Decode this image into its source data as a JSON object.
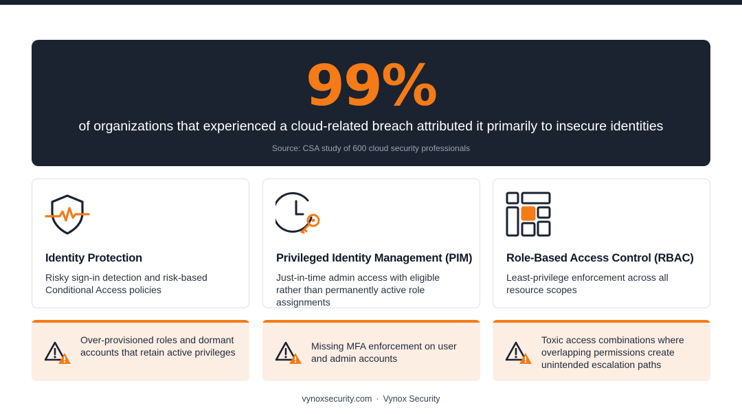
{
  "hero": {
    "stat": "99%",
    "headline": "of organizations that experienced a cloud-related breach attributed it primarily to insecure identities",
    "source": "Source: CSA study of 600 cloud security professionals"
  },
  "cards": [
    {
      "icon": "shield-pulse-icon",
      "title": "Identity Protection",
      "description": "Risky sign-in detection and risk-based Conditional Access policies"
    },
    {
      "icon": "clock-key-icon",
      "title": "Privileged Identity Management (PIM)",
      "description": "Just-in-time admin access with eligible rather than permanently active role assignments"
    },
    {
      "icon": "grid-layout-icon",
      "title": "Role-Based Access Control (RBAC)",
      "description": "Least-privilege enforcement across all resource scopes"
    }
  ],
  "risks": [
    {
      "icon": "warning-icon",
      "text": "Over-provisioned roles and dormant accounts that retain active privileges"
    },
    {
      "icon": "warning-icon",
      "text": "Missing MFA enforcement on user and admin accounts"
    },
    {
      "icon": "warning-icon",
      "text": "Toxic access combinations where overlapping permissions create unintended escalation paths"
    }
  ],
  "footer": {
    "site": "vynoxsecurity.com",
    "separator": "·",
    "company": "Vynox Security"
  },
  "colors": {
    "accent": "#f47b16",
    "dark": "#1b2230",
    "risk_background": "#fdeee4"
  }
}
